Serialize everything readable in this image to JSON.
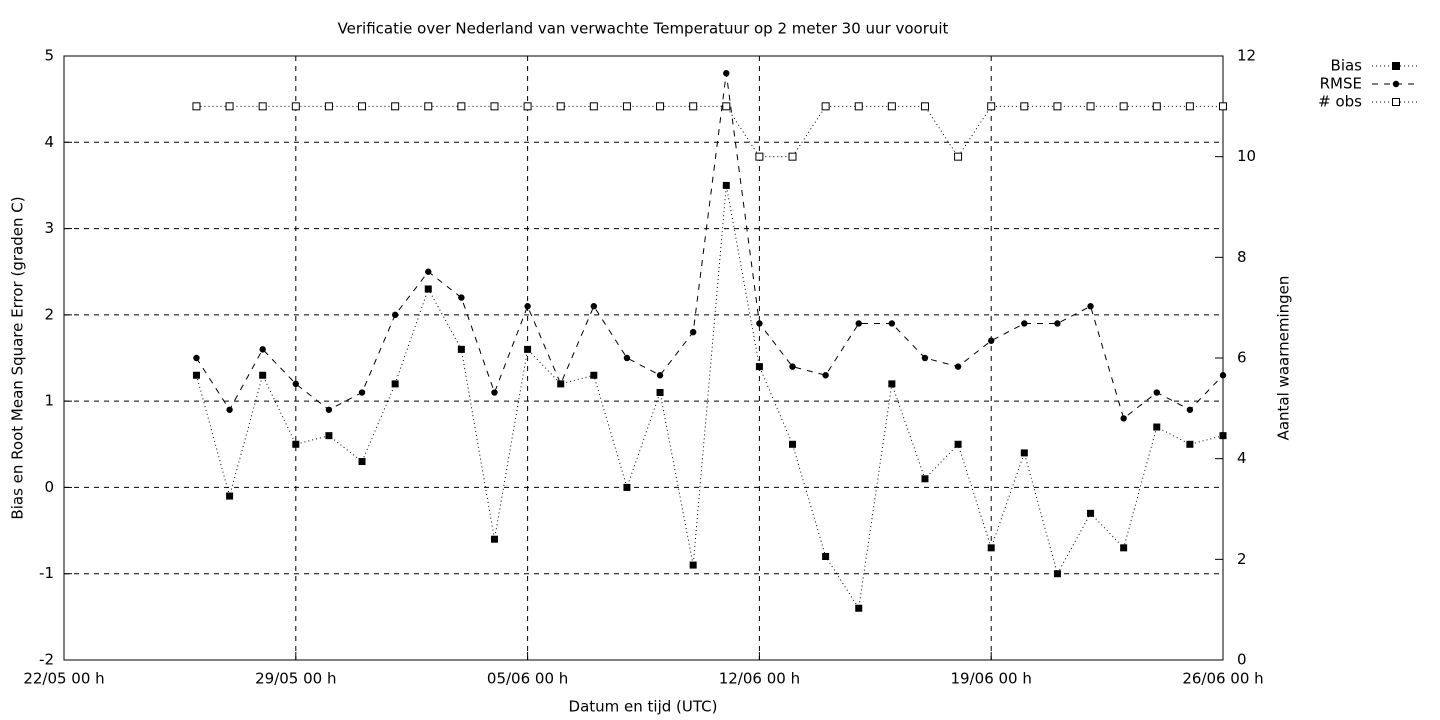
{
  "chart_data": {
    "type": "line",
    "title": "Verificatie over Nederland van verwachte Temperatuur op 2 meter 30 uur vooruit",
    "x_label": "Datum en tijd (UTC)",
    "y_label": "Bias en Root Mean Square Error (graden C)",
    "y2_label": "Aantal waarnemingen",
    "x": [
      "26/05 00 h",
      "27/05 00 h",
      "28/05 00 h",
      "29/05 00 h",
      "30/05 00 h",
      "31/05 00 h",
      "01/06 00 h",
      "02/06 00 h",
      "03/06 00 h",
      "04/06 00 h",
      "05/06 00 h",
      "06/06 00 h",
      "07/06 00 h",
      "08/06 00 h",
      "09/06 00 h",
      "10/06 00 h",
      "11/06 00 h",
      "12/06 00 h",
      "13/06 00 h",
      "14/06 00 h",
      "15/06 00 h",
      "16/06 00 h",
      "17/06 00 h",
      "18/06 00 h",
      "19/06 00 h",
      "20/06 00 h",
      "21/06 00 h",
      "22/06 00 h",
      "23/06 00 h",
      "24/06 00 h",
      "25/06 00 h",
      "26/06 00 h"
    ],
    "xlim": [
      "22/05 00 h",
      "26/06 00 h"
    ],
    "xticks": [
      "22/05 00 h",
      "29/05 00 h",
      "05/06 00 h",
      "12/06 00 h",
      "19/06 00 h",
      "26/06 00 h"
    ],
    "ylim": [
      -2,
      5
    ],
    "yticks": [
      -2,
      -1,
      0,
      1,
      2,
      3,
      4,
      5
    ],
    "y2lim": [
      0,
      12
    ],
    "y2ticks": [
      0,
      2,
      4,
      6,
      8,
      10,
      12
    ],
    "grid": true,
    "legend": "top-right",
    "series": [
      {
        "name": "Bias",
        "color": "#000000",
        "dash": "dotted",
        "marker": "square",
        "values": [
          1.3,
          -0.1,
          1.3,
          0.5,
          0.6,
          0.3,
          1.2,
          2.3,
          1.6,
          -0.6,
          1.6,
          1.2,
          1.3,
          0.0,
          1.1,
          -0.9,
          3.5,
          1.4,
          0.5,
          -0.8,
          -1.4,
          1.2,
          0.1,
          0.5,
          -0.7,
          0.4,
          -1.0,
          -0.3,
          -0.7,
          0.7,
          0.5,
          0.6
        ]
      },
      {
        "name": "RMSE",
        "color": "#000000",
        "dash": "dashed",
        "marker": "circle",
        "values": [
          1.5,
          0.9,
          1.6,
          1.2,
          0.9,
          1.1,
          2.0,
          2.5,
          2.2,
          1.1,
          2.1,
          1.2,
          2.1,
          1.5,
          1.3,
          1.8,
          4.8,
          1.9,
          1.4,
          1.3,
          1.9,
          1.9,
          1.5,
          1.4,
          1.7,
          1.9,
          1.9,
          2.1,
          0.8,
          1.1,
          0.9,
          1.3
        ]
      },
      {
        "name": "# obs",
        "color": "#000000",
        "dash": "dotted",
        "marker": "open-square",
        "axis": "y2",
        "values": [
          11,
          11,
          11,
          11,
          11,
          11,
          11,
          11,
          11,
          11,
          11,
          11,
          11,
          11,
          11,
          11,
          11,
          10,
          10,
          11,
          11,
          11,
          11,
          10,
          11,
          11,
          11,
          11,
          11,
          11,
          11,
          11
        ]
      }
    ]
  }
}
